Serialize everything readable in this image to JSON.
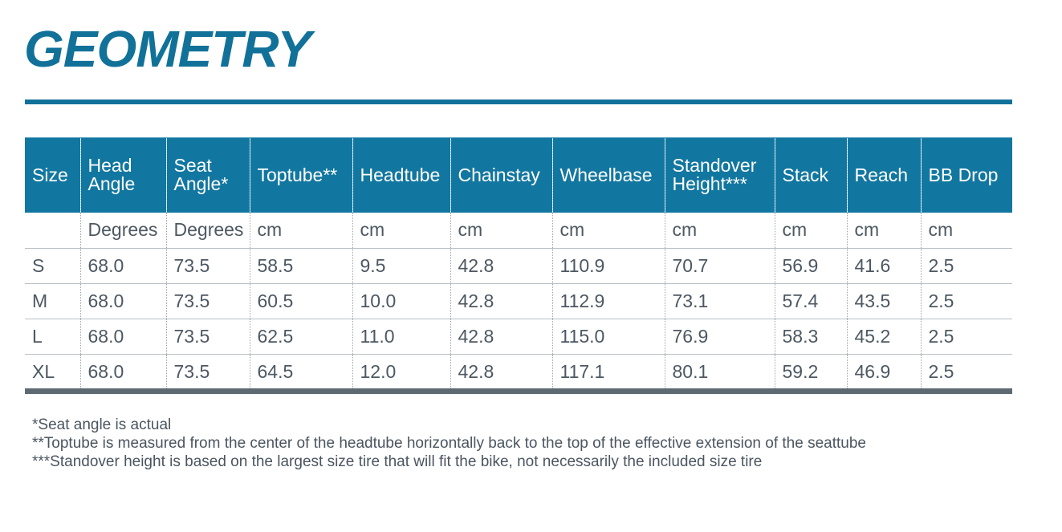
{
  "title": "GEOMETRY",
  "table": {
    "headers": [
      {
        "line1": "Size",
        "line2": ""
      },
      {
        "line1": "Head",
        "line2": "Angle"
      },
      {
        "line1": "Seat",
        "line2": "Angle*"
      },
      {
        "line1": "Toptube**",
        "line2": ""
      },
      {
        "line1": "Headtube",
        "line2": ""
      },
      {
        "line1": "Chainstay",
        "line2": ""
      },
      {
        "line1": "Wheelbase",
        "line2": ""
      },
      {
        "line1": "Standover",
        "line2": "Height***"
      },
      {
        "line1": "Stack",
        "line2": ""
      },
      {
        "line1": "Reach",
        "line2": ""
      },
      {
        "line1": "BB Drop",
        "line2": ""
      }
    ],
    "units": [
      "",
      "Degrees",
      "Degrees",
      "cm",
      "cm",
      "cm",
      "cm",
      "cm",
      "cm",
      "cm",
      "cm"
    ],
    "rows": [
      [
        "S",
        "68.0",
        "73.5",
        "58.5",
        "9.5",
        "42.8",
        "110.9",
        "70.7",
        "56.9",
        "41.6",
        "2.5"
      ],
      [
        "M",
        "68.0",
        "73.5",
        "60.5",
        "10.0",
        "42.8",
        "112.9",
        "73.1",
        "57.4",
        "43.5",
        "2.5"
      ],
      [
        "L",
        "68.0",
        "73.5",
        "62.5",
        "11.0",
        "42.8",
        "115.0",
        "76.9",
        "58.3",
        "45.2",
        "2.5"
      ],
      [
        "XL",
        "68.0",
        "73.5",
        "64.5",
        "12.0",
        "42.8",
        "117.1",
        "80.1",
        "59.2",
        "46.9",
        "2.5"
      ]
    ]
  },
  "footnotes": [
    "*Seat angle is actual",
    "**Toptube is measured from the center of the headtube horizontally back to the top of the effective extension of the seattube",
    "***Standover height is based on the largest size tire that will fit the bike, not necessarily the included size tire"
  ],
  "colors": {
    "accent": "#117199",
    "header_bg": "#1277a0",
    "bottom_bar": "#5d6a73",
    "text": "#4a5560"
  }
}
